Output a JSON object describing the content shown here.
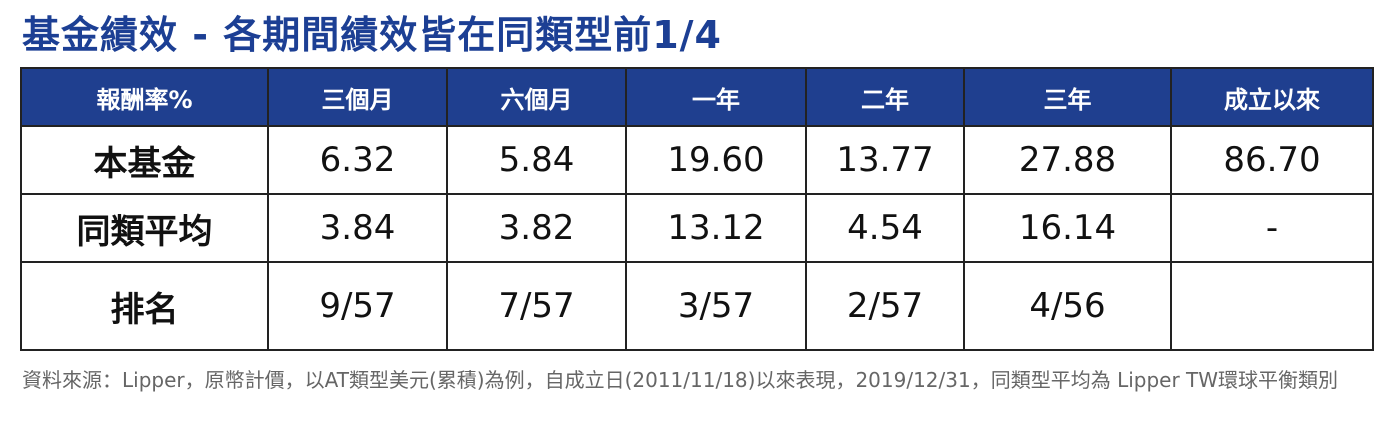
{
  "header": {
    "title": "基金績效 - 各期間績效皆在同類型前1/4"
  },
  "table": {
    "columns": [
      "報酬率%",
      "三個月",
      "六個月",
      "一年",
      "二年",
      "三年",
      "成立以來"
    ],
    "rows": [
      [
        "本基金",
        "6.32",
        "5.84",
        "19.60",
        "13.77",
        "27.88",
        "86.70"
      ],
      [
        "同類平均",
        "3.84",
        "3.82",
        "13.12",
        "4.54",
        "16.14",
        "-"
      ],
      [
        "排名",
        "9/57",
        "7/57",
        "3/57",
        "2/57",
        "4/56"
      ]
    ]
  },
  "footnote": "資料來源：Lipper，原幣計價，以AT類型美元(累積)為例，自成立日(2011/11/18)以來表現，2019/12/31，同類型平均為 Lipper TW環球平衡類別"
}
